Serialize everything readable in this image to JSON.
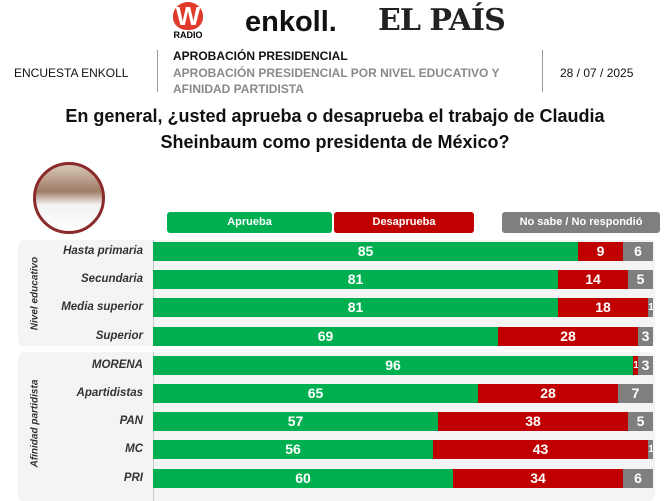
{
  "header": {
    "logo_w": "W",
    "logo_w_sub": "RADIO",
    "logo_enkoll": "enkoll.",
    "logo_pais": "EL PAÍS",
    "survey": "ENCUESTA ENKOLL",
    "title": "APROBACIÓN PRESIDENCIAL",
    "subtitle": "APROBACIÓN PRESIDENCIAL POR NIVEL EDUCATIVO Y AFINIDAD PARTIDISTA",
    "date": "28 / 07 / 2025"
  },
  "question": "En general, ¿usted aprueba o desaprueba el trabajo de Claudia Sheinbaum como presidenta de México?",
  "watermark": "enkoll.",
  "chart_data": {
    "type": "bar",
    "orientation": "horizontal",
    "stacked": true,
    "xlim": [
      0,
      100
    ],
    "series": [
      {
        "name": "Aprueba",
        "color": "#00b050",
        "values": [
          85,
          81,
          81,
          69,
          96,
          65,
          57,
          56,
          60
        ]
      },
      {
        "name": "Desaprueba",
        "color": "#c00000",
        "values": [
          9,
          14,
          18,
          28,
          1,
          28,
          38,
          43,
          34
        ]
      },
      {
        "name": "No sabe / No respondió",
        "color": "#7f7f7f",
        "values": [
          6,
          5,
          1,
          3,
          3,
          7,
          5,
          1,
          6
        ]
      }
    ],
    "groups": [
      {
        "label": "Nivel educativo",
        "categories": [
          "Hasta primaria",
          "Secundaria",
          "Media superior",
          "Superior"
        ]
      },
      {
        "label": "Afinidad partidista",
        "categories": [
          "MORENA",
          "Apartidistas",
          "PAN",
          "MC",
          "PRI"
        ]
      }
    ]
  }
}
